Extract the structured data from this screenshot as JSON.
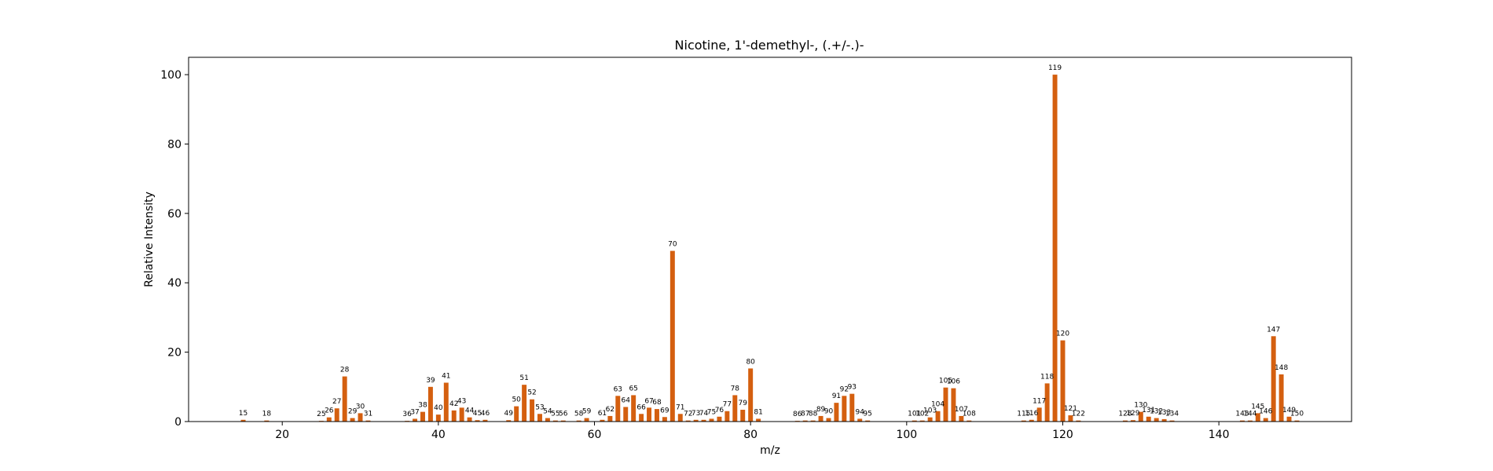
{
  "chart_data": {
    "type": "bar",
    "title": "Nicotine, 1'-demethyl-, (.+/-.)-",
    "xlabel": "m/z",
    "ylabel": "Relative Intensity",
    "xlim": [
      8,
      157
    ],
    "ylim": [
      0,
      105
    ],
    "xticks": [
      20,
      40,
      60,
      80,
      100,
      120,
      140
    ],
    "yticks": [
      0,
      20,
      40,
      60,
      80,
      100
    ],
    "bar_color": "#d45f0f",
    "grid": false,
    "x": [
      15,
      18,
      25,
      26,
      27,
      28,
      29,
      30,
      31,
      36,
      37,
      38,
      39,
      40,
      41,
      42,
      43,
      44,
      45,
      46,
      49,
      50,
      51,
      52,
      53,
      54,
      55,
      56,
      58,
      59,
      61,
      62,
      63,
      64,
      65,
      66,
      67,
      68,
      69,
      70,
      71,
      72,
      73,
      74,
      75,
      76,
      77,
      78,
      79,
      80,
      81,
      86,
      87,
      88,
      89,
      90,
      91,
      92,
      93,
      94,
      95,
      101,
      102,
      103,
      104,
      105,
      106,
      107,
      108,
      115,
      116,
      117,
      118,
      119,
      120,
      121,
      122,
      128,
      129,
      130,
      131,
      132,
      133,
      134,
      143,
      144,
      145,
      146,
      147,
      148,
      149,
      150
    ],
    "y": [
      0.5,
      0.3,
      0.2,
      1.2,
      3.8,
      13.0,
      1.0,
      2.4,
      0.3,
      0.2,
      0.8,
      2.8,
      10.0,
      2.0,
      11.2,
      3.2,
      4.0,
      1.2,
      0.4,
      0.5,
      0.4,
      4.4,
      10.6,
      6.4,
      2.2,
      1.0,
      0.3,
      0.3,
      0.3,
      1.0,
      0.5,
      1.6,
      7.4,
      4.2,
      7.6,
      2.2,
      4.0,
      3.6,
      1.3,
      49.2,
      2.2,
      0.3,
      0.5,
      0.5,
      0.8,
      1.4,
      3.0,
      7.6,
      3.4,
      15.3,
      0.8,
      0.2,
      0.3,
      0.3,
      1.6,
      1.0,
      5.4,
      7.4,
      8.0,
      0.8,
      0.3,
      0.3,
      0.3,
      1.2,
      3.0,
      9.8,
      9.6,
      1.6,
      0.3,
      0.3,
      0.5,
      4.0,
      11.0,
      100.0,
      23.4,
      1.8,
      0.3,
      0.3,
      0.4,
      2.8,
      1.4,
      1.0,
      0.7,
      0.3,
      0.3,
      0.3,
      2.4,
      1.0,
      24.6,
      13.6,
      1.4,
      0.3
    ]
  }
}
